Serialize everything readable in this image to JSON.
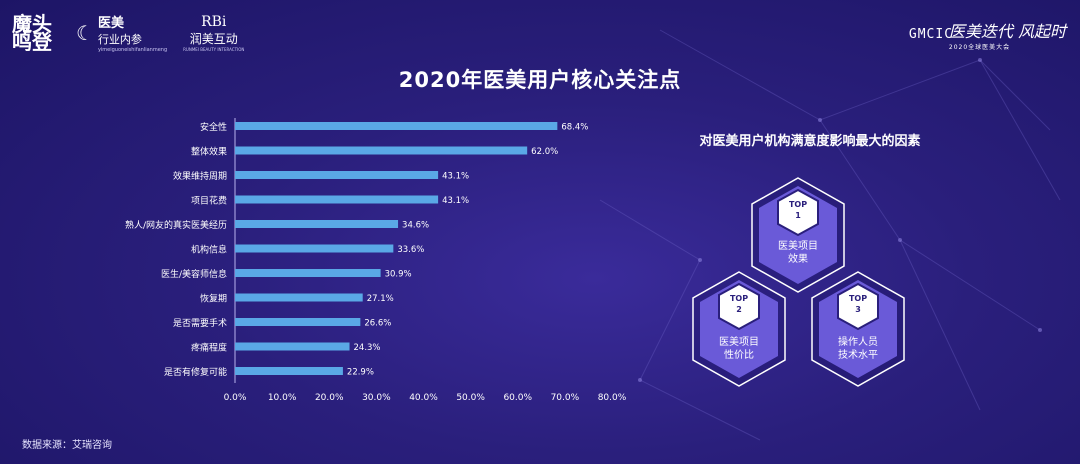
{
  "logos": {
    "left_1": "魔头鸣登",
    "left_2_line1": "医美",
    "left_2_line2": "行业内参",
    "left_2_line3": "yimeiguoneishifanlianmeng",
    "left_3_line1": "RBi",
    "left_3_line2": "润美互动",
    "left_3_line3": "RUNMEI BEAUTY INTERACTION",
    "right_mark": "GMCIC",
    "right_line1": "医美迭代 风起时",
    "right_line2": "2020全球医美大会"
  },
  "chart_data": {
    "type": "bar",
    "orientation": "horizontal",
    "title": "2020年医美用户核心关注点",
    "categories": [
      "安全性",
      "整体效果",
      "效果维持周期",
      "项目花费",
      "熟人/网友的真实医美经历",
      "机构信息",
      "医生/美容师信息",
      "恢复期",
      "是否需要手术",
      "疼痛程度",
      "是否有修复可能"
    ],
    "values": [
      68.4,
      62.0,
      43.1,
      43.1,
      34.6,
      33.6,
      30.9,
      27.1,
      26.6,
      24.3,
      22.9
    ],
    "value_labels": [
      "68.4%",
      "62.0%",
      "43.1%",
      "43.1%",
      "34.6%",
      "33.6%",
      "30.9%",
      "27.1%",
      "26.6%",
      "24.3%",
      "22.9%"
    ],
    "xlim": [
      0,
      80
    ],
    "ticks": [
      0,
      10,
      20,
      30,
      40,
      50,
      60,
      70,
      80
    ],
    "tick_labels": [
      "0.0%",
      "10.0%",
      "20.0%",
      "30.0%",
      "40.0%",
      "50.0%",
      "60.0%",
      "70.0%",
      "80.0%"
    ],
    "bar_color": "#5aa8e6",
    "grid": false
  },
  "source": "数据来源：艾瑞咨询",
  "panel": {
    "title": "对医美用户机构满意度影响最大的因素",
    "tops": [
      {
        "badge_top": "TOP",
        "badge_num": "1",
        "line1": "医美项目",
        "line2": "效果"
      },
      {
        "badge_top": "TOP",
        "badge_num": "2",
        "line1": "医美项目",
        "line2": "性价比"
      },
      {
        "badge_top": "TOP",
        "badge_num": "3",
        "line1": "操作人员",
        "line2": "技术水平"
      }
    ]
  },
  "colors": {
    "background": "#2a1f7c",
    "hex_fill": "#6a5ad8",
    "hex_outline": "#ffffff",
    "accent": "#5aa8e6"
  }
}
